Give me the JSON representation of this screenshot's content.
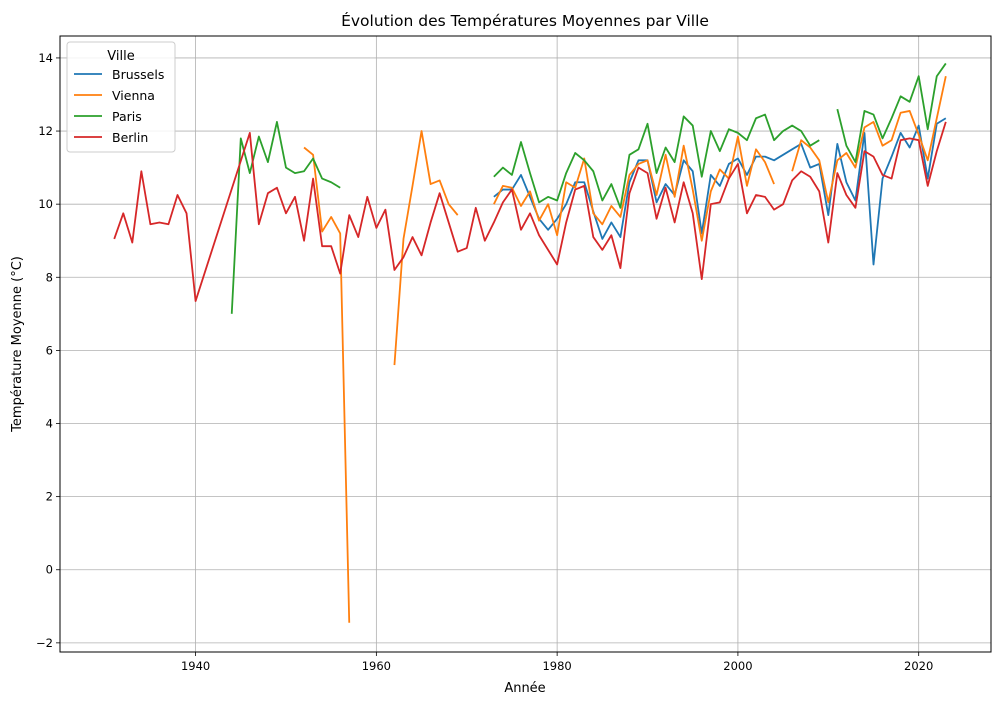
{
  "chart_data": {
    "type": "line",
    "title": "Évolution des Températures Moyennes par Ville",
    "xlabel": "Année",
    "ylabel": "Température Moyenne (°C)",
    "xlim": [
      1925,
      2028
    ],
    "ylim": [
      -2.25,
      14.6
    ],
    "xticks": [
      1940,
      1960,
      1980,
      2000,
      2020
    ],
    "yticks": [
      -2,
      0,
      2,
      4,
      6,
      8,
      10,
      12,
      14
    ],
    "grid": true,
    "legend": {
      "title": "Ville",
      "position": "top-left"
    },
    "series": [
      {
        "name": "Brussels",
        "color": "#1f77b4",
        "points": [
          [
            1973,
            10.2
          ],
          [
            1974,
            10.4
          ],
          [
            1975,
            10.4
          ],
          [
            1976,
            10.8
          ],
          [
            1977,
            10.2
          ],
          [
            1978,
            9.6
          ],
          [
            1979,
            9.3
          ],
          [
            1980,
            9.6
          ],
          [
            1981,
            10.0
          ],
          [
            1982,
            10.6
          ],
          [
            1983,
            10.6
          ],
          [
            1984,
            9.8
          ],
          [
            1985,
            9.05
          ],
          [
            1986,
            9.5
          ],
          [
            1987,
            9.1
          ],
          [
            1988,
            10.6
          ],
          [
            1989,
            11.2
          ],
          [
            1990,
            11.2
          ],
          [
            1991,
            10.05
          ],
          [
            1992,
            10.55
          ],
          [
            1993,
            10.25
          ],
          [
            1994,
            11.2
          ],
          [
            1995,
            10.9
          ],
          [
            1996,
            9.2
          ],
          [
            1997,
            10.8
          ],
          [
            1998,
            10.5
          ],
          [
            1999,
            11.1
          ],
          [
            2000,
            11.25
          ],
          [
            2001,
            10.8
          ],
          [
            2002,
            11.3
          ],
          [
            2003,
            11.3
          ],
          [
            2004,
            11.2
          ],
          [
            2005,
            11.35
          ],
          [
            2006,
            11.5
          ],
          [
            2007,
            11.65
          ],
          [
            2008,
            11.0
          ],
          [
            2009,
            11.1
          ],
          [
            2010,
            9.7
          ],
          [
            2011,
            11.65
          ],
          [
            2012,
            10.6
          ],
          [
            2013,
            10.1
          ],
          [
            2014,
            11.95
          ],
          [
            2015,
            8.35
          ],
          [
            2016,
            10.7
          ],
          [
            2017,
            11.3
          ],
          [
            2018,
            11.95
          ],
          [
            2019,
            11.55
          ],
          [
            2020,
            12.15
          ],
          [
            2021,
            10.7
          ],
          [
            2022,
            12.2
          ],
          [
            2023,
            12.35
          ]
        ]
      },
      {
        "name": "Vienna",
        "color": "#ff7f0e",
        "points": [
          [
            1952,
            11.55
          ],
          [
            1953,
            11.35
          ],
          [
            1954,
            9.25
          ],
          [
            1955,
            9.65
          ],
          [
            1956,
            9.2
          ],
          [
            1957,
            -1.45
          ],
          [
            1958,
            null
          ],
          [
            1962,
            5.6
          ],
          [
            1963,
            9.05
          ],
          [
            1964,
            10.5
          ],
          [
            1965,
            12.0
          ],
          [
            1966,
            10.55
          ],
          [
            1967,
            10.65
          ],
          [
            1968,
            10.0
          ],
          [
            1969,
            9.7
          ],
          [
            1970,
            null
          ],
          [
            1973,
            10.0
          ],
          [
            1974,
            10.5
          ],
          [
            1975,
            10.45
          ],
          [
            1976,
            9.95
          ],
          [
            1977,
            10.35
          ],
          [
            1978,
            9.55
          ],
          [
            1979,
            10.0
          ],
          [
            1980,
            9.15
          ],
          [
            1981,
            10.6
          ],
          [
            1982,
            10.45
          ],
          [
            1983,
            11.25
          ],
          [
            1984,
            9.75
          ],
          [
            1985,
            9.45
          ],
          [
            1986,
            9.95
          ],
          [
            1987,
            9.65
          ],
          [
            1988,
            10.8
          ],
          [
            1989,
            11.1
          ],
          [
            1990,
            11.2
          ],
          [
            1991,
            10.25
          ],
          [
            1992,
            11.35
          ],
          [
            1993,
            10.2
          ],
          [
            1994,
            11.6
          ],
          [
            1995,
            10.4
          ],
          [
            1996,
            9.0
          ],
          [
            1997,
            10.35
          ],
          [
            1998,
            10.95
          ],
          [
            1999,
            10.7
          ],
          [
            2000,
            11.85
          ],
          [
            2001,
            10.5
          ],
          [
            2002,
            11.5
          ],
          [
            2003,
            11.15
          ],
          [
            2004,
            10.55
          ],
          [
            2005,
            null
          ],
          [
            2006,
            10.9
          ],
          [
            2007,
            11.75
          ],
          [
            2008,
            11.55
          ],
          [
            2009,
            11.2
          ],
          [
            2010,
            10.05
          ],
          [
            2011,
            11.2
          ],
          [
            2012,
            11.4
          ],
          [
            2013,
            11.0
          ],
          [
            2014,
            12.1
          ],
          [
            2015,
            12.25
          ],
          [
            2016,
            11.6
          ],
          [
            2017,
            11.75
          ],
          [
            2018,
            12.5
          ],
          [
            2019,
            12.55
          ],
          [
            2020,
            11.9
          ],
          [
            2021,
            11.2
          ],
          [
            2022,
            12.35
          ],
          [
            2023,
            13.5
          ]
        ]
      },
      {
        "name": "Paris",
        "color": "#2ca02c",
        "points": [
          [
            1944,
            7.0
          ],
          [
            1945,
            11.8
          ],
          [
            1946,
            10.85
          ],
          [
            1947,
            11.85
          ],
          [
            1948,
            11.15
          ],
          [
            1949,
            12.25
          ],
          [
            1950,
            11.0
          ],
          [
            1951,
            10.85
          ],
          [
            1952,
            10.9
          ],
          [
            1953,
            11.25
          ],
          [
            1954,
            10.7
          ],
          [
            1955,
            10.6
          ],
          [
            1956,
            10.45
          ],
          [
            1957,
            null
          ],
          [
            1973,
            10.75
          ],
          [
            1974,
            11.0
          ],
          [
            1975,
            10.8
          ],
          [
            1976,
            11.7
          ],
          [
            1977,
            10.85
          ],
          [
            1978,
            10.05
          ],
          [
            1979,
            10.2
          ],
          [
            1980,
            10.1
          ],
          [
            1981,
            10.85
          ],
          [
            1982,
            11.4
          ],
          [
            1983,
            11.2
          ],
          [
            1984,
            10.9
          ],
          [
            1985,
            10.1
          ],
          [
            1986,
            10.55
          ],
          [
            1987,
            9.9
          ],
          [
            1988,
            11.35
          ],
          [
            1989,
            11.5
          ],
          [
            1990,
            12.2
          ],
          [
            1991,
            10.85
          ],
          [
            1992,
            11.55
          ],
          [
            1993,
            11.15
          ],
          [
            1994,
            12.4
          ],
          [
            1995,
            12.15
          ],
          [
            1996,
            10.75
          ],
          [
            1997,
            12.0
          ],
          [
            1998,
            11.45
          ],
          [
            1999,
            12.05
          ],
          [
            2000,
            11.95
          ],
          [
            2001,
            11.75
          ],
          [
            2002,
            12.35
          ],
          [
            2003,
            12.45
          ],
          [
            2004,
            11.75
          ],
          [
            2005,
            12.0
          ],
          [
            2006,
            12.15
          ],
          [
            2007,
            12.0
          ],
          [
            2008,
            11.6
          ],
          [
            2009,
            11.75
          ],
          [
            2010,
            null
          ],
          [
            2011,
            12.6
          ],
          [
            2012,
            11.6
          ],
          [
            2013,
            11.15
          ],
          [
            2014,
            12.55
          ],
          [
            2015,
            12.45
          ],
          [
            2016,
            11.8
          ],
          [
            2017,
            12.35
          ],
          [
            2018,
            12.95
          ],
          [
            2019,
            12.8
          ],
          [
            2020,
            13.5
          ],
          [
            2021,
            12.05
          ],
          [
            2022,
            13.5
          ],
          [
            2023,
            13.85
          ]
        ]
      },
      {
        "name": "Berlin",
        "color": "#d62728",
        "points": [
          [
            1931,
            9.05
          ],
          [
            1932,
            9.75
          ],
          [
            1933,
            8.95
          ],
          [
            1934,
            10.9
          ],
          [
            1935,
            9.45
          ],
          [
            1936,
            9.5
          ],
          [
            1937,
            9.45
          ],
          [
            1938,
            10.25
          ],
          [
            1939,
            9.75
          ],
          [
            1940,
            7.35
          ],
          [
            1946,
            11.95
          ],
          [
            1947,
            9.45
          ],
          [
            1948,
            10.3
          ],
          [
            1949,
            10.45
          ],
          [
            1950,
            9.75
          ],
          [
            1951,
            10.2
          ],
          [
            1952,
            9.0
          ],
          [
            1953,
            10.7
          ],
          [
            1954,
            8.85
          ],
          [
            1955,
            8.85
          ],
          [
            1956,
            8.1
          ],
          [
            1957,
            9.7
          ],
          [
            1958,
            9.1
          ],
          [
            1959,
            10.2
          ],
          [
            1960,
            9.35
          ],
          [
            1961,
            9.85
          ],
          [
            1962,
            8.2
          ],
          [
            1963,
            8.55
          ],
          [
            1964,
            9.1
          ],
          [
            1965,
            8.6
          ],
          [
            1966,
            9.5
          ],
          [
            1967,
            10.3
          ],
          [
            1968,
            9.5
          ],
          [
            1969,
            8.7
          ],
          [
            1970,
            8.8
          ],
          [
            1971,
            9.9
          ],
          [
            1972,
            9.0
          ],
          [
            1973,
            9.5
          ],
          [
            1974,
            10.05
          ],
          [
            1975,
            10.4
          ],
          [
            1976,
            9.3
          ],
          [
            1977,
            9.75
          ],
          [
            1978,
            9.15
          ],
          [
            1979,
            8.75
          ],
          [
            1980,
            8.35
          ],
          [
            1981,
            9.5
          ],
          [
            1982,
            10.4
          ],
          [
            1983,
            10.5
          ],
          [
            1984,
            9.1
          ],
          [
            1985,
            8.75
          ],
          [
            1986,
            9.15
          ],
          [
            1987,
            8.25
          ],
          [
            1988,
            10.3
          ],
          [
            1989,
            11.0
          ],
          [
            1990,
            10.85
          ],
          [
            1991,
            9.6
          ],
          [
            1992,
            10.45
          ],
          [
            1993,
            9.5
          ],
          [
            1994,
            10.6
          ],
          [
            1995,
            9.75
          ],
          [
            1996,
            7.95
          ],
          [
            1997,
            10.0
          ],
          [
            1998,
            10.05
          ],
          [
            1999,
            10.7
          ],
          [
            2000,
            11.1
          ],
          [
            2001,
            9.75
          ],
          [
            2002,
            10.25
          ],
          [
            2003,
            10.2
          ],
          [
            2004,
            9.85
          ],
          [
            2005,
            10.0
          ],
          [
            2006,
            10.65
          ],
          [
            2007,
            10.9
          ],
          [
            2008,
            10.75
          ],
          [
            2009,
            10.35
          ],
          [
            2010,
            8.95
          ],
          [
            2011,
            10.85
          ],
          [
            2012,
            10.25
          ],
          [
            2013,
            9.9
          ],
          [
            2014,
            11.45
          ],
          [
            2015,
            11.3
          ],
          [
            2016,
            10.8
          ],
          [
            2017,
            10.7
          ],
          [
            2018,
            11.75
          ],
          [
            2019,
            11.8
          ],
          [
            2020,
            11.75
          ],
          [
            2021,
            10.5
          ],
          [
            2022,
            11.45
          ],
          [
            2023,
            12.25
          ]
        ]
      }
    ]
  }
}
